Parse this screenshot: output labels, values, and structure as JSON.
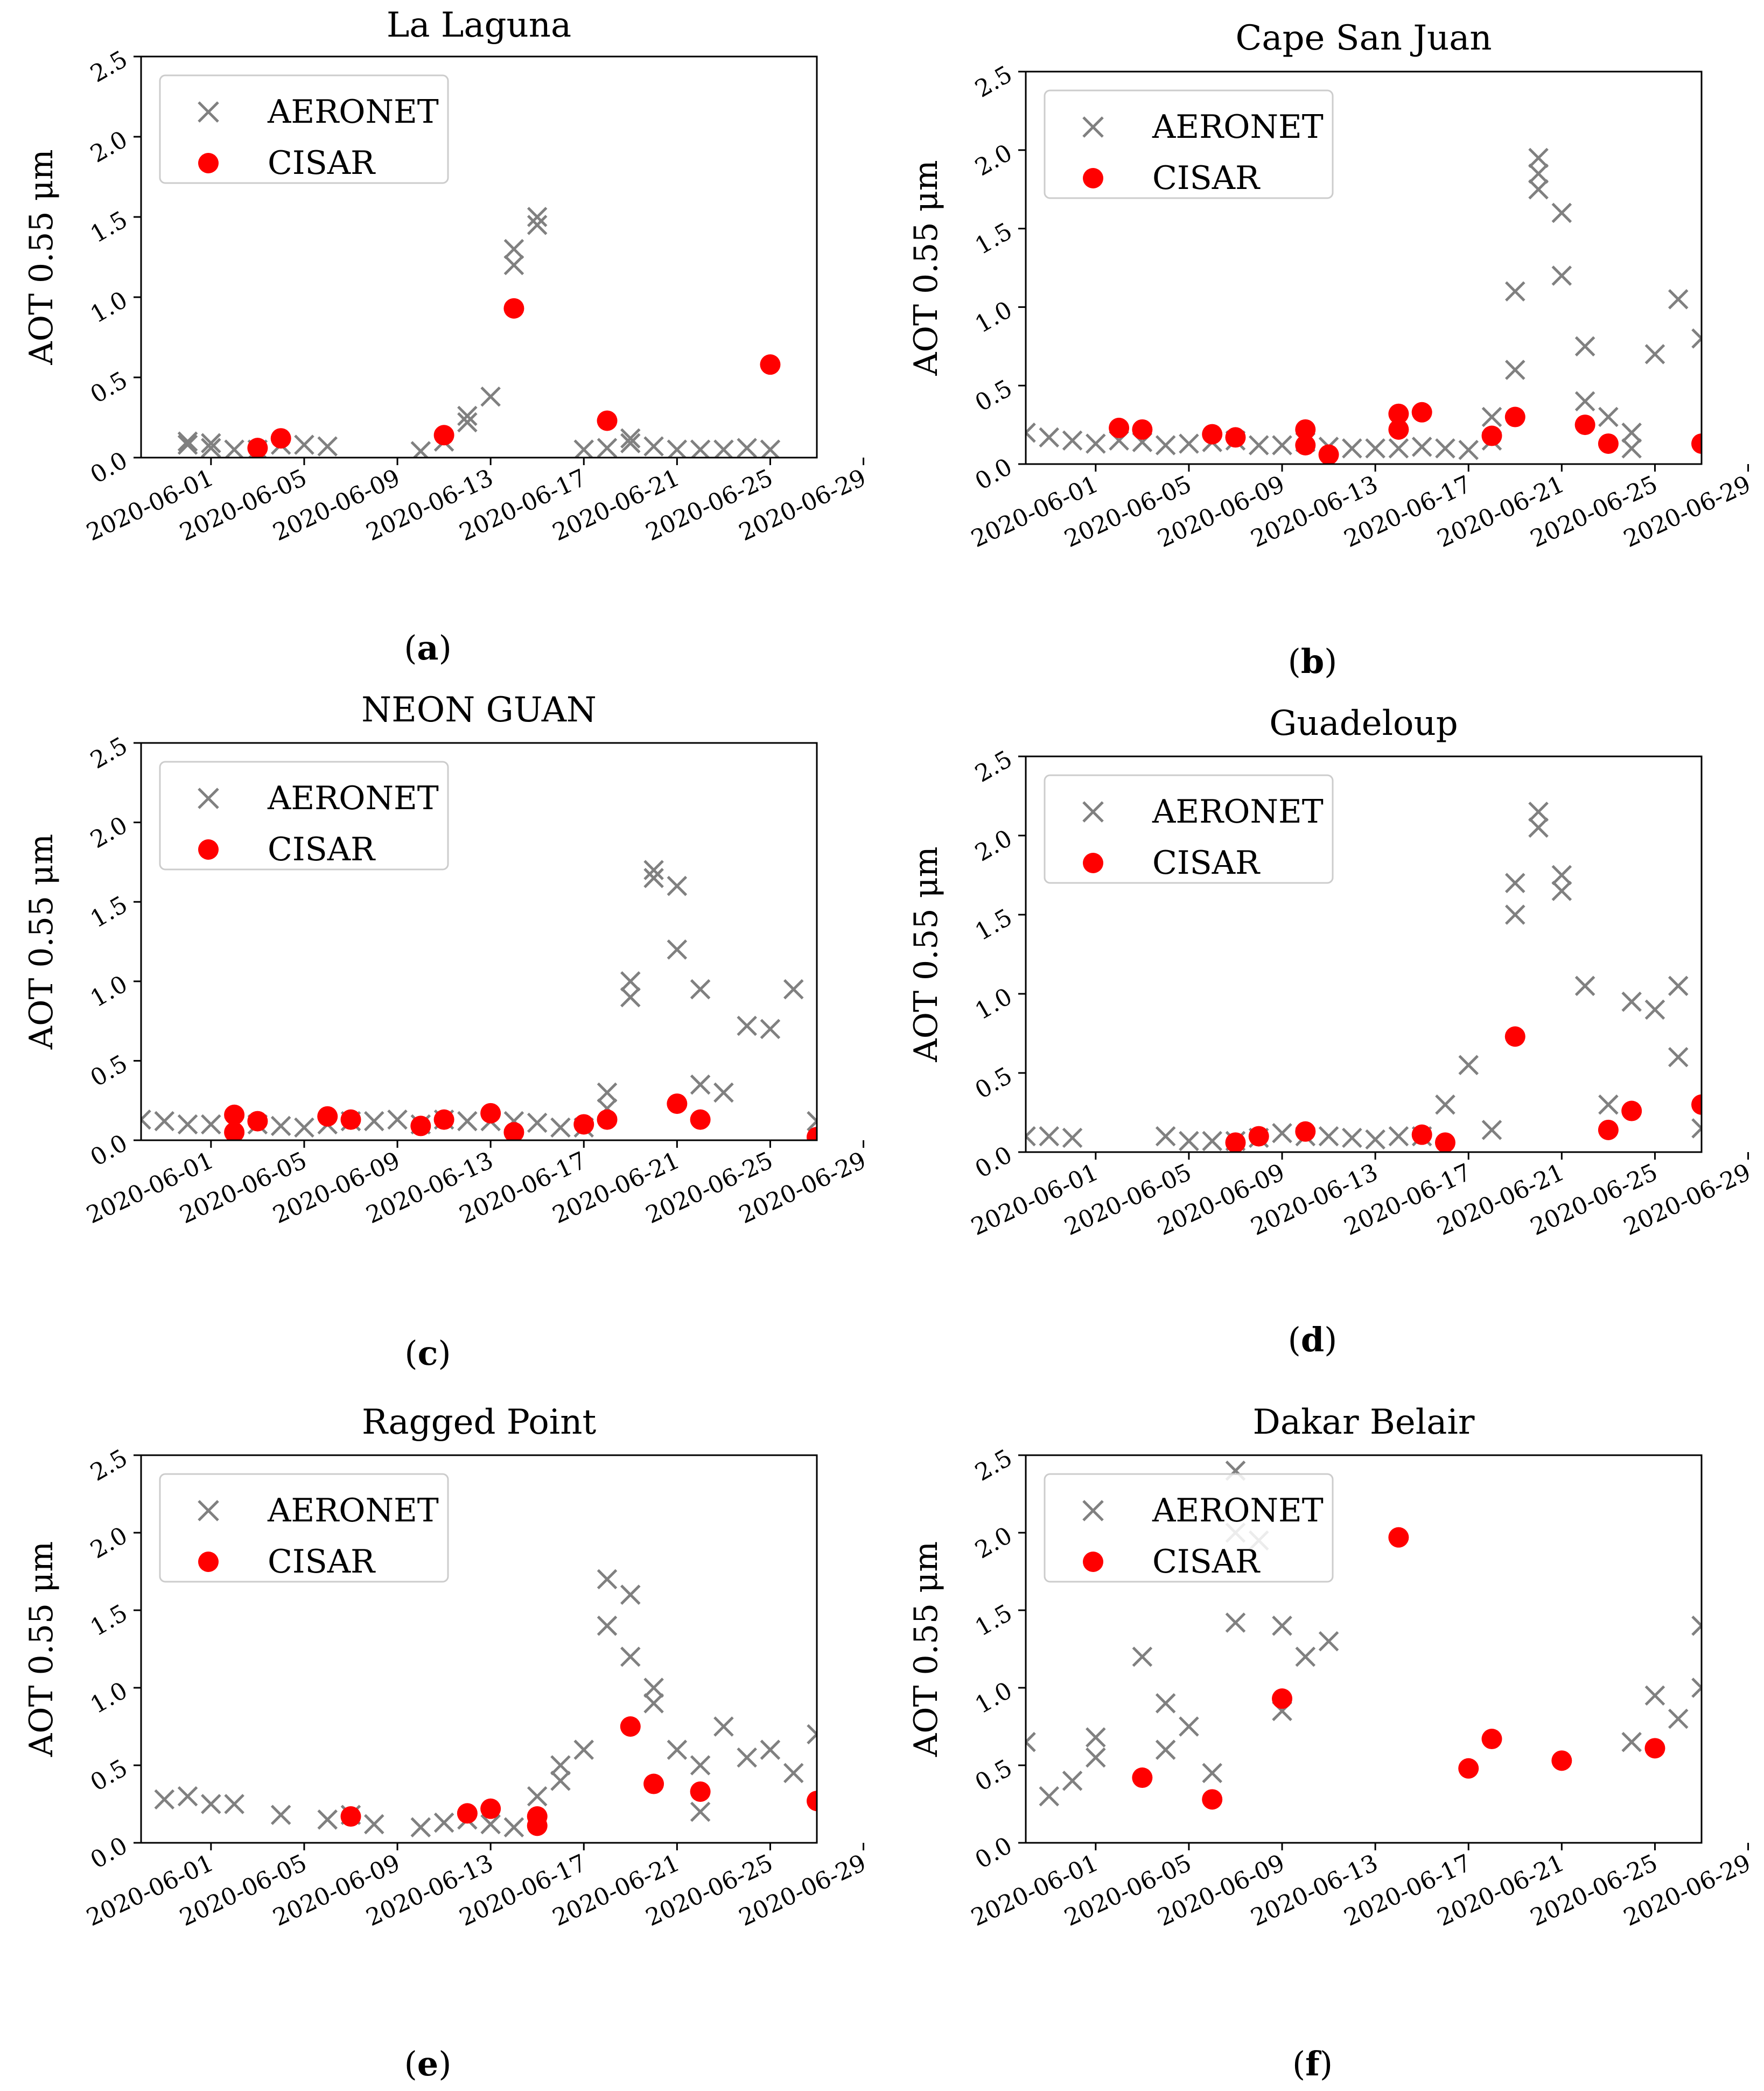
{
  "chart_data": [
    {
      "panel": "(a)",
      "caption_letter": "a",
      "type": "scatter",
      "title": "La Laguna",
      "ylabel": "AOT 0.55 μm",
      "xlabel": "",
      "ylim": [
        0.0,
        2.5
      ],
      "yticks": [
        "0.0",
        "0.5",
        "1.0",
        "1.5",
        "2.0",
        "2.5"
      ],
      "xlim": [
        "2020-05-29",
        "2020-06-27"
      ],
      "xticks": [
        "2020-06-01",
        "2020-06-05",
        "2020-06-09",
        "2020-06-13",
        "2020-06-17",
        "2020-06-21",
        "2020-06-25",
        "2020-06-29"
      ],
      "legend": "top-left",
      "series": [
        {
          "name": "AERONET",
          "marker": "x",
          "color": "#808080",
          "x": [
            "2020-05-31",
            "2020-05-31",
            "2020-06-01",
            "2020-06-01",
            "2020-06-02",
            "2020-06-03",
            "2020-06-04",
            "2020-06-05",
            "2020-06-06",
            "2020-06-10",
            "2020-06-11",
            "2020-06-12",
            "2020-06-12",
            "2020-06-13",
            "2020-06-14",
            "2020-06-14",
            "2020-06-15",
            "2020-06-15",
            "2020-06-17",
            "2020-06-18",
            "2020-06-19",
            "2020-06-19",
            "2020-06-20",
            "2020-06-21",
            "2020-06-22",
            "2020-06-23",
            "2020-06-24",
            "2020-06-25"
          ],
          "y": [
            0.1,
            0.08,
            0.09,
            0.06,
            0.05,
            0.05,
            0.08,
            0.08,
            0.07,
            0.04,
            0.1,
            0.22,
            0.26,
            0.38,
            1.2,
            1.3,
            1.45,
            1.5,
            0.05,
            0.06,
            0.12,
            0.09,
            0.07,
            0.05,
            0.05,
            0.05,
            0.06,
            0.05
          ]
        },
        {
          "name": "CISAR",
          "marker": "o",
          "color": "#ff0000",
          "x": [
            "2020-06-03",
            "2020-06-04",
            "2020-06-11",
            "2020-06-14",
            "2020-06-18",
            "2020-06-25"
          ],
          "y": [
            0.06,
            0.12,
            0.14,
            0.93,
            0.23,
            0.58
          ]
        }
      ]
    },
    {
      "panel": "(b)",
      "caption_letter": "b",
      "type": "scatter",
      "title": "Cape San Juan",
      "ylabel": "AOT 0.55 μm",
      "xlabel": "",
      "ylim": [
        0.0,
        2.5
      ],
      "yticks": [
        "0.0",
        "0.5",
        "1.0",
        "1.5",
        "2.0",
        "2.5"
      ],
      "xlim": [
        "2020-05-29",
        "2020-06-27"
      ],
      "xticks": [
        "2020-06-01",
        "2020-06-05",
        "2020-06-09",
        "2020-06-13",
        "2020-06-17",
        "2020-06-21",
        "2020-06-25",
        "2020-06-29"
      ],
      "legend": "top-left",
      "series": [
        {
          "name": "AERONET",
          "marker": "x",
          "color": "#808080",
          "x": [
            "2020-05-29",
            "2020-05-30",
            "2020-05-31",
            "2020-06-01",
            "2020-06-02",
            "2020-06-03",
            "2020-06-04",
            "2020-06-05",
            "2020-06-06",
            "2020-06-07",
            "2020-06-08",
            "2020-06-09",
            "2020-06-10",
            "2020-06-11",
            "2020-06-12",
            "2020-06-13",
            "2020-06-14",
            "2020-06-15",
            "2020-06-16",
            "2020-06-17",
            "2020-06-18",
            "2020-06-18",
            "2020-06-19",
            "2020-06-19",
            "2020-06-20",
            "2020-06-20",
            "2020-06-20",
            "2020-06-21",
            "2020-06-21",
            "2020-06-22",
            "2020-06-22",
            "2020-06-23",
            "2020-06-24",
            "2020-06-24",
            "2020-06-25",
            "2020-06-26",
            "2020-06-27"
          ],
          "y": [
            0.2,
            0.17,
            0.15,
            0.13,
            0.15,
            0.14,
            0.12,
            0.13,
            0.14,
            0.15,
            0.12,
            0.12,
            0.14,
            0.11,
            0.1,
            0.1,
            0.1,
            0.11,
            0.1,
            0.09,
            0.3,
            0.15,
            0.6,
            1.1,
            1.75,
            1.95,
            1.85,
            1.6,
            1.2,
            0.75,
            0.4,
            0.3,
            0.2,
            0.1,
            0.7,
            1.05,
            0.8
          ]
        },
        {
          "name": "CISAR",
          "marker": "o",
          "color": "#ff0000",
          "x": [
            "2020-06-02",
            "2020-06-03",
            "2020-06-06",
            "2020-06-07",
            "2020-06-10",
            "2020-06-10",
            "2020-06-11",
            "2020-06-14",
            "2020-06-14",
            "2020-06-15",
            "2020-06-18",
            "2020-06-19",
            "2020-06-22",
            "2020-06-23",
            "2020-06-27"
          ],
          "y": [
            0.23,
            0.22,
            0.19,
            0.17,
            0.22,
            0.12,
            0.06,
            0.22,
            0.32,
            0.33,
            0.18,
            0.3,
            0.25,
            0.13,
            0.13
          ]
        }
      ]
    },
    {
      "panel": "(c)",
      "caption_letter": "c",
      "type": "scatter",
      "title": "NEON GUAN",
      "ylabel": "AOT 0.55 μm",
      "xlabel": "",
      "ylim": [
        0.0,
        2.5
      ],
      "yticks": [
        "0.0",
        "0.5",
        "1.0",
        "1.5",
        "2.0",
        "2.5"
      ],
      "xlim": [
        "2020-05-29",
        "2020-06-27"
      ],
      "xticks": [
        "2020-06-01",
        "2020-06-05",
        "2020-06-09",
        "2020-06-13",
        "2020-06-17",
        "2020-06-21",
        "2020-06-25",
        "2020-06-29"
      ],
      "legend": "top-left",
      "series": [
        {
          "name": "AERONET",
          "marker": "x",
          "color": "#808080",
          "x": [
            "2020-05-29",
            "2020-05-30",
            "2020-05-31",
            "2020-06-01",
            "2020-06-02",
            "2020-06-03",
            "2020-06-04",
            "2020-06-05",
            "2020-06-06",
            "2020-06-07",
            "2020-06-08",
            "2020-06-09",
            "2020-06-10",
            "2020-06-11",
            "2020-06-12",
            "2020-06-13",
            "2020-06-14",
            "2020-06-15",
            "2020-06-16",
            "2020-06-17",
            "2020-06-18",
            "2020-06-18",
            "2020-06-19",
            "2020-06-19",
            "2020-06-20",
            "2020-06-20",
            "2020-06-21",
            "2020-06-21",
            "2020-06-22",
            "2020-06-22",
            "2020-06-23",
            "2020-06-24",
            "2020-06-25",
            "2020-06-26",
            "2020-06-27"
          ],
          "y": [
            0.13,
            0.12,
            0.1,
            0.1,
            0.09,
            0.1,
            0.09,
            0.08,
            0.1,
            0.12,
            0.12,
            0.13,
            0.1,
            0.13,
            0.12,
            0.12,
            0.12,
            0.11,
            0.08,
            0.08,
            0.2,
            0.3,
            0.9,
            1.0,
            1.7,
            1.65,
            1.6,
            1.2,
            0.35,
            0.95,
            0.3,
            0.72,
            0.7,
            0.95,
            0.12
          ]
        },
        {
          "name": "CISAR",
          "marker": "o",
          "color": "#ff0000",
          "x": [
            "2020-06-02",
            "2020-06-02",
            "2020-06-03",
            "2020-06-06",
            "2020-06-07",
            "2020-06-10",
            "2020-06-11",
            "2020-06-13",
            "2020-06-14",
            "2020-06-17",
            "2020-06-18",
            "2020-06-21",
            "2020-06-22",
            "2020-06-27"
          ],
          "y": [
            0.16,
            0.05,
            0.12,
            0.15,
            0.13,
            0.09,
            0.13,
            0.17,
            0.05,
            0.1,
            0.13,
            0.23,
            0.13,
            0.02
          ]
        }
      ]
    },
    {
      "panel": "(d)",
      "caption_letter": "d",
      "type": "scatter",
      "title": "Guadeloup",
      "ylabel": "AOT 0.55 μm",
      "xlabel": "",
      "ylim": [
        0.0,
        2.5
      ],
      "yticks": [
        "0.0",
        "0.5",
        "1.0",
        "1.5",
        "2.0",
        "2.5"
      ],
      "xlim": [
        "2020-05-29",
        "2020-06-27"
      ],
      "xticks": [
        "2020-06-01",
        "2020-06-05",
        "2020-06-09",
        "2020-06-13",
        "2020-06-17",
        "2020-06-21",
        "2020-06-25",
        "2020-06-29"
      ],
      "legend": "top-left",
      "series": [
        {
          "name": "AERONET",
          "marker": "x",
          "color": "#808080",
          "x": [
            "2020-05-29",
            "2020-05-30",
            "2020-05-31",
            "2020-06-04",
            "2020-06-05",
            "2020-06-06",
            "2020-06-07",
            "2020-06-08",
            "2020-06-09",
            "2020-06-10",
            "2020-06-11",
            "2020-06-12",
            "2020-06-13",
            "2020-06-14",
            "2020-06-15",
            "2020-06-16",
            "2020-06-17",
            "2020-06-18",
            "2020-06-19",
            "2020-06-19",
            "2020-06-20",
            "2020-06-20",
            "2020-06-21",
            "2020-06-21",
            "2020-06-22",
            "2020-06-23",
            "2020-06-24",
            "2020-06-25",
            "2020-06-26",
            "2020-06-26",
            "2020-06-27"
          ],
          "y": [
            0.1,
            0.1,
            0.09,
            0.1,
            0.07,
            0.07,
            0.07,
            0.09,
            0.12,
            0.1,
            0.1,
            0.09,
            0.08,
            0.1,
            0.1,
            0.3,
            0.55,
            0.14,
            1.5,
            1.7,
            2.05,
            2.15,
            1.75,
            1.65,
            1.05,
            0.3,
            0.95,
            0.9,
            0.6,
            1.05,
            0.15
          ]
        },
        {
          "name": "CISAR",
          "marker": "o",
          "color": "#ff0000",
          "x": [
            "2020-06-07",
            "2020-06-08",
            "2020-06-10",
            "2020-06-15",
            "2020-06-16",
            "2020-06-19",
            "2020-06-23",
            "2020-06-24",
            "2020-06-27"
          ],
          "y": [
            0.06,
            0.1,
            0.13,
            0.11,
            0.06,
            0.73,
            0.14,
            0.26,
            0.3
          ]
        }
      ]
    },
    {
      "panel": "(e)",
      "caption_letter": "e",
      "type": "scatter",
      "title": "Ragged Point",
      "ylabel": "AOT 0.55 μm",
      "xlabel": "",
      "ylim": [
        0.0,
        2.5
      ],
      "yticks": [
        "0.0",
        "0.5",
        "1.0",
        "1.5",
        "2.0",
        "2.5"
      ],
      "xlim": [
        "2020-05-29",
        "2020-06-27"
      ],
      "xticks": [
        "2020-06-01",
        "2020-06-05",
        "2020-06-09",
        "2020-06-13",
        "2020-06-17",
        "2020-06-21",
        "2020-06-25",
        "2020-06-29"
      ],
      "legend": "top-left",
      "series": [
        {
          "name": "AERONET",
          "marker": "x",
          "color": "#808080",
          "x": [
            "2020-05-30",
            "2020-05-31",
            "2020-06-01",
            "2020-06-02",
            "2020-06-04",
            "2020-06-06",
            "2020-06-07",
            "2020-06-08",
            "2020-06-10",
            "2020-06-11",
            "2020-06-12",
            "2020-06-13",
            "2020-06-14",
            "2020-06-15",
            "2020-06-16",
            "2020-06-16",
            "2020-06-17",
            "2020-06-18",
            "2020-06-18",
            "2020-06-19",
            "2020-06-19",
            "2020-06-20",
            "2020-06-20",
            "2020-06-21",
            "2020-06-22",
            "2020-06-22",
            "2020-06-23",
            "2020-06-24",
            "2020-06-25",
            "2020-06-26",
            "2020-06-27"
          ],
          "y": [
            0.28,
            0.3,
            0.25,
            0.25,
            0.18,
            0.15,
            0.18,
            0.12,
            0.1,
            0.13,
            0.15,
            0.12,
            0.1,
            0.3,
            0.5,
            0.4,
            0.6,
            1.4,
            1.7,
            1.6,
            1.2,
            1.0,
            0.9,
            0.6,
            0.2,
            0.5,
            0.75,
            0.55,
            0.6,
            0.45,
            0.7
          ]
        },
        {
          "name": "CISAR",
          "marker": "o",
          "color": "#ff0000",
          "x": [
            "2020-06-07",
            "2020-06-12",
            "2020-06-13",
            "2020-06-15",
            "2020-06-15",
            "2020-06-19",
            "2020-06-20",
            "2020-06-22",
            "2020-06-27"
          ],
          "y": [
            0.17,
            0.19,
            0.22,
            0.11,
            0.17,
            0.75,
            0.38,
            0.33,
            0.27
          ]
        }
      ]
    },
    {
      "panel": "(f)",
      "caption_letter": "f",
      "type": "scatter",
      "title": "Dakar Belair",
      "ylabel": "AOT 0.55 μm",
      "xlabel": "",
      "ylim": [
        0.0,
        2.5
      ],
      "yticks": [
        "0.0",
        "0.5",
        "1.0",
        "1.5",
        "2.0",
        "2.5"
      ],
      "xlim": [
        "2020-05-29",
        "2020-06-27"
      ],
      "xticks": [
        "2020-06-01",
        "2020-06-05",
        "2020-06-09",
        "2020-06-13",
        "2020-06-17",
        "2020-06-21",
        "2020-06-25",
        "2020-06-29"
      ],
      "legend": "top-left",
      "series": [
        {
          "name": "AERONET",
          "marker": "x",
          "color": "#808080",
          "x": [
            "2020-05-29",
            "2020-05-30",
            "2020-05-31",
            "2020-06-01",
            "2020-06-01",
            "2020-06-03",
            "2020-06-04",
            "2020-06-04",
            "2020-06-05",
            "2020-06-06",
            "2020-06-07",
            "2020-06-07",
            "2020-06-07",
            "2020-06-08",
            "2020-06-09",
            "2020-06-09",
            "2020-06-10",
            "2020-06-11",
            "2020-06-24",
            "2020-06-25",
            "2020-06-26",
            "2020-06-27",
            "2020-06-27"
          ],
          "y": [
            0.65,
            0.3,
            0.4,
            0.55,
            0.68,
            1.2,
            0.9,
            0.6,
            0.75,
            0.45,
            1.42,
            2.0,
            2.4,
            1.95,
            1.4,
            0.85,
            1.2,
            1.3,
            0.65,
            0.95,
            0.8,
            1.4,
            1.0
          ]
        },
        {
          "name": "CISAR",
          "marker": "o",
          "color": "#ff0000",
          "x": [
            "2020-06-03",
            "2020-06-06",
            "2020-06-09",
            "2020-06-14",
            "2020-06-17",
            "2020-06-18",
            "2020-06-21",
            "2020-06-25"
          ],
          "y": [
            0.42,
            0.28,
            0.93,
            1.97,
            0.48,
            0.67,
            0.53,
            0.61
          ]
        }
      ]
    }
  ]
}
